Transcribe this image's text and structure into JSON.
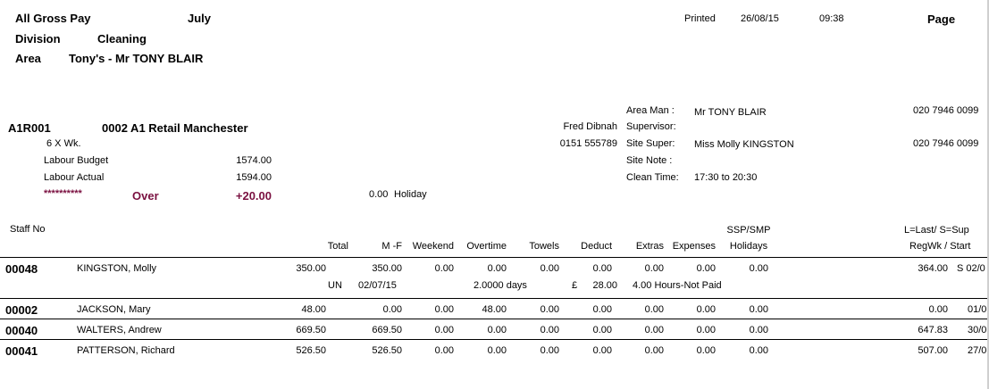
{
  "report": {
    "title": "All Gross Pay",
    "month": "July",
    "division_label": "Division",
    "division": "Cleaning",
    "area_label": "Area",
    "area": "Tony's - Mr TONY BLAIR",
    "printed_label": "Printed",
    "printed_date": "26/08/15",
    "printed_time": "09:38",
    "page_label": "Page"
  },
  "site": {
    "code": "A1R001",
    "name": "0002 A1 Retail Manchester",
    "frequency": "6   X Wk.",
    "labour_budget_label": "Labour Budget",
    "labour_budget": "1574.00",
    "labour_actual_label": "Labour Actual",
    "labour_actual": "1594.00",
    "stars": "**********",
    "over_label": "Over",
    "over_value": "+20.00",
    "holiday_value": "0.00",
    "holiday_label": "Holiday",
    "contact_name": "Fred Dibnah",
    "contact_phone": "0151 555789",
    "area_man_label": "Area Man  :",
    "area_man": "Mr TONY BLAIR",
    "area_man_phone": "020 7946 0099",
    "supervisor_label": "Supervisor:",
    "site_super_label": "Site Super:",
    "site_super": "Miss Molly KINGSTON",
    "site_super_phone": "020 7946 0099",
    "site_note_label": "Site Note :",
    "clean_time_label": "Clean Time:",
    "clean_time": "17:30 to 20:30"
  },
  "columns": {
    "staff_no": "Staff No",
    "total": "Total",
    "mf": "M -F",
    "weekend": "Weekend",
    "overtime": "Overtime",
    "towels": "Towels",
    "deduct": "Deduct",
    "extras": "Extras",
    "expenses": "Expenses",
    "ssp_smp": "SSP/SMP",
    "holidays": "Holidays",
    "last_sup": "L=Last/   S=Sup",
    "regwk_start": "RegWk / Start"
  },
  "rows": [
    {
      "staff_no": "00048",
      "name": "KINGSTON, Molly",
      "total": "350.00",
      "mf": "350.00",
      "weekend": "0.00",
      "overtime": "0.00",
      "towels": "0.00",
      "deduct": "0.00",
      "extras": "0.00",
      "expenses": "0.00",
      "holidays": "0.00",
      "regwk": "364.00",
      "start": "S  02/0"
    },
    {
      "staff_no": "00002",
      "name": "JACKSON, Mary",
      "total": "48.00",
      "mf": "0.00",
      "weekend": "0.00",
      "overtime": "48.00",
      "towels": "0.00",
      "deduct": "0.00",
      "extras": "0.00",
      "expenses": "0.00",
      "holidays": "0.00",
      "regwk": "0.00",
      "start": "01/0"
    },
    {
      "staff_no": "00040",
      "name": "WALTERS, Andrew",
      "total": "669.50",
      "mf": "669.50",
      "weekend": "0.00",
      "overtime": "0.00",
      "towels": "0.00",
      "deduct": "0.00",
      "extras": "0.00",
      "expenses": "0.00",
      "holidays": "0.00",
      "regwk": "647.83",
      "start": "30/0"
    },
    {
      "staff_no": "00041",
      "name": "PATTERSON, Richard",
      "total": "526.50",
      "mf": "526.50",
      "weekend": "0.00",
      "overtime": "0.00",
      "towels": "0.00",
      "deduct": "0.00",
      "extras": "0.00",
      "expenses": "0.00",
      "holidays": "0.00",
      "regwk": "507.00",
      "start": "27/0"
    }
  ],
  "subline": {
    "un": "UN",
    "date": "02/07/15",
    "days": "2.0000 days",
    "pound": "£",
    "amount": "28.00",
    "note": "4.00 Hours-Not Paid"
  }
}
